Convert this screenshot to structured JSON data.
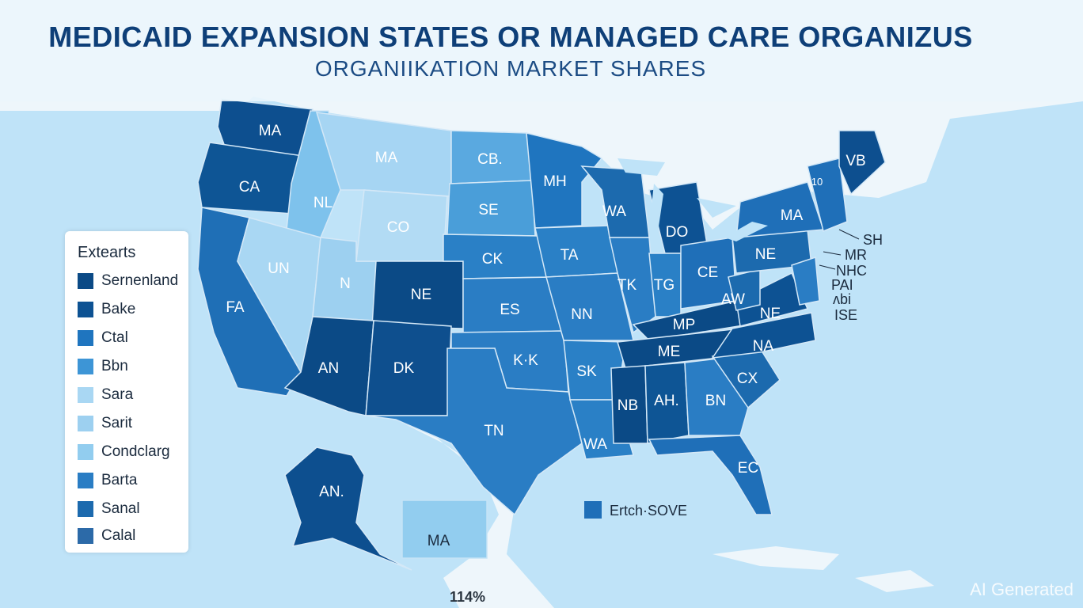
{
  "title": "MEDICAID EXPANSION STATES OR MANAGED CARE ORGANIZUS",
  "subtitle": "ORGANIIKATION MARKET SHARES",
  "legend": {
    "title": "Extearts",
    "items": [
      {
        "label": "Sernenland",
        "color": "#0b4a86"
      },
      {
        "label": "Bake",
        "color": "#0d5293"
      },
      {
        "label": "Ctal",
        "color": "#1f75bf"
      },
      {
        "label": "Bbn",
        "color": "#3d95d6"
      },
      {
        "label": "Sara",
        "color": "#a9d7f3"
      },
      {
        "label": "Sarit",
        "color": "#9dd0f0"
      },
      {
        "label": "Condclarg",
        "color": "#92cdef"
      },
      {
        "label": "Barta",
        "color": "#2a7dc4"
      },
      {
        "label": "Sanal",
        "color": "#1c6aae"
      },
      {
        "label": "Calal",
        "color": "#2c6aa8"
      }
    ]
  },
  "extra_legend": {
    "label": "Ertch·SOVE",
    "color": "#1f6fb8"
  },
  "state_labels": [
    "MA",
    "CA",
    "NL",
    "MA",
    "CB.",
    "SE",
    "CO",
    "MH",
    "UN",
    "N",
    "NE",
    "CK",
    "TA",
    "ES",
    "FA",
    "AN",
    "DK",
    "K·K",
    "NN",
    "TK",
    "TG",
    "CE",
    "DO",
    "WA",
    "NE",
    "MA",
    "MP",
    "ME",
    "NE",
    "AW",
    "NA",
    "NB",
    "AH.",
    "SK",
    "BN",
    "CX",
    "TN",
    "WA",
    "EC",
    "AN.",
    "MA",
    "VB",
    "SH",
    "MR",
    "NHC",
    "PAI",
    "ISE",
    "10",
    "ʌbi"
  ],
  "footnote": "114%",
  "watermark": "AI Generated",
  "colors": {
    "ocean": "#bfe3f8",
    "land_outside": "#eef6fb",
    "title": "#0e3f78",
    "dark": "#0b4a86",
    "mid": "#1f75bf",
    "light": "#9dd0f0"
  }
}
